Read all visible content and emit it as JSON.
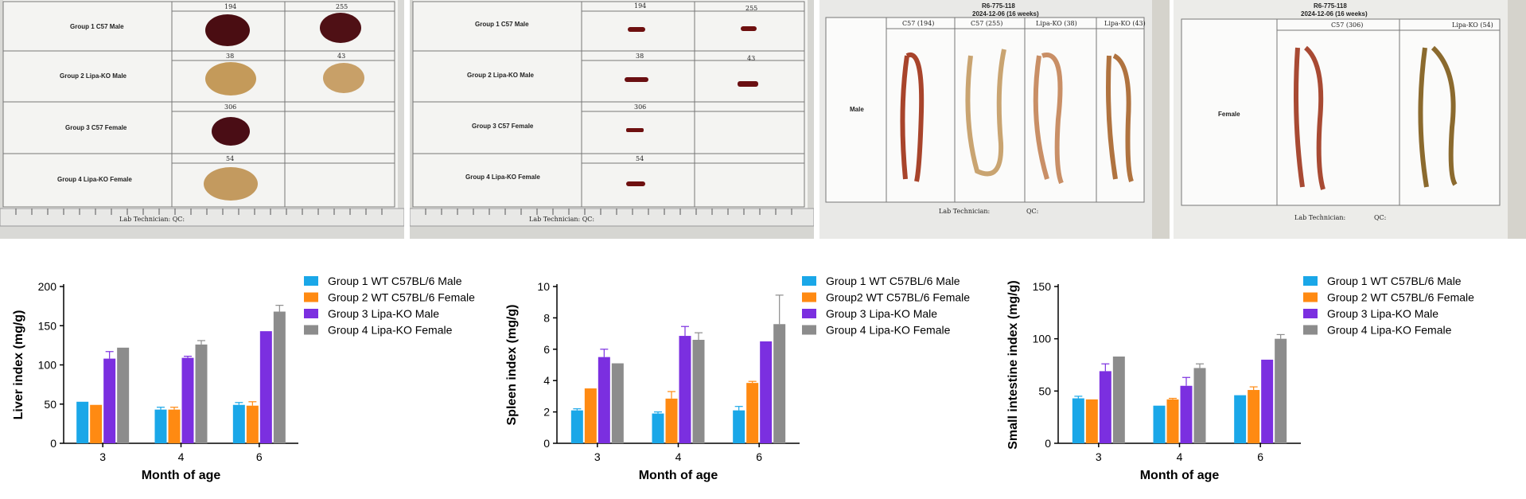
{
  "photos": {
    "liver_photo": {
      "groups": [
        "Group 1 C57 Male",
        "Group 2 Lipa-KO Male",
        "Group 3 C57 Female",
        "Group 4 Lipa-KO Female"
      ],
      "ids": [
        "194",
        "255",
        "38",
        "43",
        "306",
        "54"
      ],
      "footer": "Lab Technician: QC:"
    },
    "spleen_photo": {
      "groups": [
        "Group 1 C57 Male",
        "Group 2 Lipa-KO Male",
        "Group 3 C57 Female",
        "Group 4 Lipa-KO Female"
      ],
      "ids": [
        "194",
        "255",
        "38",
        "43",
        "306",
        "54"
      ],
      "footer": "Lab Technician: QC:"
    },
    "intestine_male_photo": {
      "header": "R6-775-118",
      "date": "2024-12-06 (16 weeks)",
      "columns": [
        "C57 (194)",
        "C57 (255)",
        "Lipa-KO (38)",
        "Lipa-KO (43)"
      ],
      "row_label": "Male",
      "footer_tech": "Lab Technician:",
      "footer_qc": "QC:"
    },
    "intestine_female_photo": {
      "header": "R6-775-118",
      "date": "2024-12-06 (16 weeks)",
      "columns": [
        "C57 (306)",
        "Lipa-KO (54)"
      ],
      "row_label": "Female",
      "footer_tech": "Lab Technician:",
      "footer_qc": "QC:"
    }
  },
  "colors": {
    "group1": "#1aa7e8",
    "group2": "#ff8a12",
    "group3": "#7b2fe0",
    "group4": "#8c8c8c"
  },
  "chart_data": [
    {
      "type": "bar",
      "categories": [
        "3",
        "4",
        "6"
      ],
      "xlabel": "Month of age",
      "ylabel": "Liver index (mg/g)",
      "ylim": [
        0,
        200
      ],
      "yticks": [
        0,
        50,
        100,
        150,
        200
      ],
      "legend_position": "right",
      "series": [
        {
          "name": "Group 1 WT C57BL/6 Male",
          "values": [
            53,
            43,
            49
          ],
          "errors": [
            0,
            3,
            3
          ]
        },
        {
          "name": "Group 2 WT C57BL/6 Female",
          "values": [
            49,
            43,
            48
          ],
          "errors": [
            0,
            3,
            5
          ]
        },
        {
          "name": "Group 3 Lipa-KO Male",
          "values": [
            108,
            109,
            143
          ],
          "errors": [
            9,
            2,
            0
          ]
        },
        {
          "name": "Group 4 Lipa-KO Female",
          "values": [
            122,
            126,
            168
          ],
          "errors": [
            0,
            5,
            8
          ]
        }
      ]
    },
    {
      "type": "bar",
      "categories": [
        "3",
        "4",
        "6"
      ],
      "xlabel": "Month of age",
      "ylabel": "Spleen index (mg/g)",
      "ylim": [
        0,
        10
      ],
      "yticks": [
        0,
        2,
        4,
        6,
        8,
        10
      ],
      "legend_position": "right",
      "series": [
        {
          "name": "Group 1 WT C57BL/6 Male",
          "values": [
            2.1,
            1.9,
            2.1
          ],
          "errors": [
            0.1,
            0.1,
            0.25
          ]
        },
        {
          "name": "Group2 WT C57BL/6 Female",
          "values": [
            3.5,
            2.85,
            3.85
          ],
          "errors": [
            0,
            0.45,
            0.1
          ]
        },
        {
          "name": "Group 3 Lipa-KO Male",
          "values": [
            5.5,
            6.85,
            6.5
          ],
          "errors": [
            0.5,
            0.6,
            0
          ]
        },
        {
          "name": "Group 4 Lipa-KO Female",
          "values": [
            5.1,
            6.6,
            7.6
          ],
          "errors": [
            0,
            0.45,
            1.85
          ]
        }
      ]
    },
    {
      "type": "bar",
      "categories": [
        "3",
        "4",
        "6"
      ],
      "xlabel": "Month of age",
      "ylabel": "Small intestine index (mg/g)",
      "ylim": [
        0,
        150
      ],
      "yticks": [
        0,
        50,
        100,
        150
      ],
      "legend_position": "right",
      "series": [
        {
          "name": "Group 1 WT C57BL/6 Male",
          "values": [
            43,
            36,
            46
          ],
          "errors": [
            2,
            0,
            0
          ]
        },
        {
          "name": "Group 2 WT C57BL/6 Female",
          "values": [
            42,
            42,
            51
          ],
          "errors": [
            0,
            1,
            3
          ]
        },
        {
          "name": "Group 3 Lipa-KO Male",
          "values": [
            69,
            55,
            80
          ],
          "errors": [
            7,
            8,
            0
          ]
        },
        {
          "name": "Group 4 Lipa-KO Female",
          "values": [
            83,
            72,
            100
          ],
          "errors": [
            0,
            4,
            4
          ]
        }
      ]
    }
  ]
}
